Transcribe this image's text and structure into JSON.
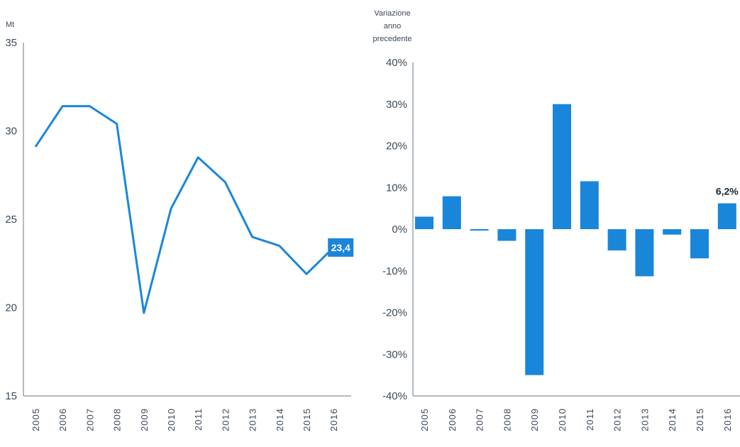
{
  "colors": {
    "series": "#1a86d9",
    "axis": "#9aa4ad",
    "text": "#3c4a5a"
  },
  "chart_data": [
    {
      "type": "line",
      "title": "",
      "ylabel": "Mt",
      "xlabel": "",
      "ylim": [
        15,
        35
      ],
      "yticks": [
        "35",
        "30",
        "25",
        "20",
        "15"
      ],
      "ytick_values": [
        35,
        30,
        25,
        20,
        15
      ],
      "x": [
        "2005",
        "2006",
        "2007",
        "2008",
        "2009",
        "2010",
        "2011",
        "2012",
        "2013",
        "2014",
        "2015",
        "2016"
      ],
      "xtick_labels": [
        "2005",
        "2006",
        "2007",
        "2008",
        "2009",
        "2010",
        "2011",
        "2012",
        "2013",
        "2014",
        "2015",
        "2016"
      ],
      "values": [
        29.1,
        31.4,
        31.4,
        30.4,
        19.7,
        25.6,
        28.5,
        27.1,
        24.0,
        23.5,
        21.9,
        23.4
      ],
      "callout": {
        "label": "23,4"
      },
      "grid": false
    },
    {
      "type": "bar",
      "title": "",
      "ylabel": [
        "Variazione",
        "anno",
        "precedente"
      ],
      "xlabel": "",
      "ylim": [
        -40,
        40
      ],
      "yticks": [
        "40%",
        "30%",
        "20%",
        "10%",
        "0%",
        "-10%",
        "-20%",
        "-30%",
        "-40%"
      ],
      "ytick_values": [
        40,
        30,
        20,
        10,
        0,
        -10,
        -20,
        -30,
        -40
      ],
      "categories": [
        "2005",
        "2006",
        "2007",
        "2008",
        "2009",
        "2010",
        "2011",
        "2012",
        "2013",
        "2014",
        "2015",
        "2016"
      ],
      "xtick_labels": [
        "2005",
        "2006",
        "2007",
        "2008",
        "2009",
        "2010",
        "2011",
        "2012",
        "2013",
        "2014",
        "2015",
        "2016"
      ],
      "values": [
        3.0,
        7.9,
        -0.3,
        -2.8,
        -35.0,
        30.0,
        11.5,
        -5.1,
        -11.3,
        -1.3,
        -7.0,
        6.2
      ],
      "data_labels": [
        {
          "index": 11,
          "text": "6,2%"
        }
      ],
      "grid": false
    }
  ]
}
